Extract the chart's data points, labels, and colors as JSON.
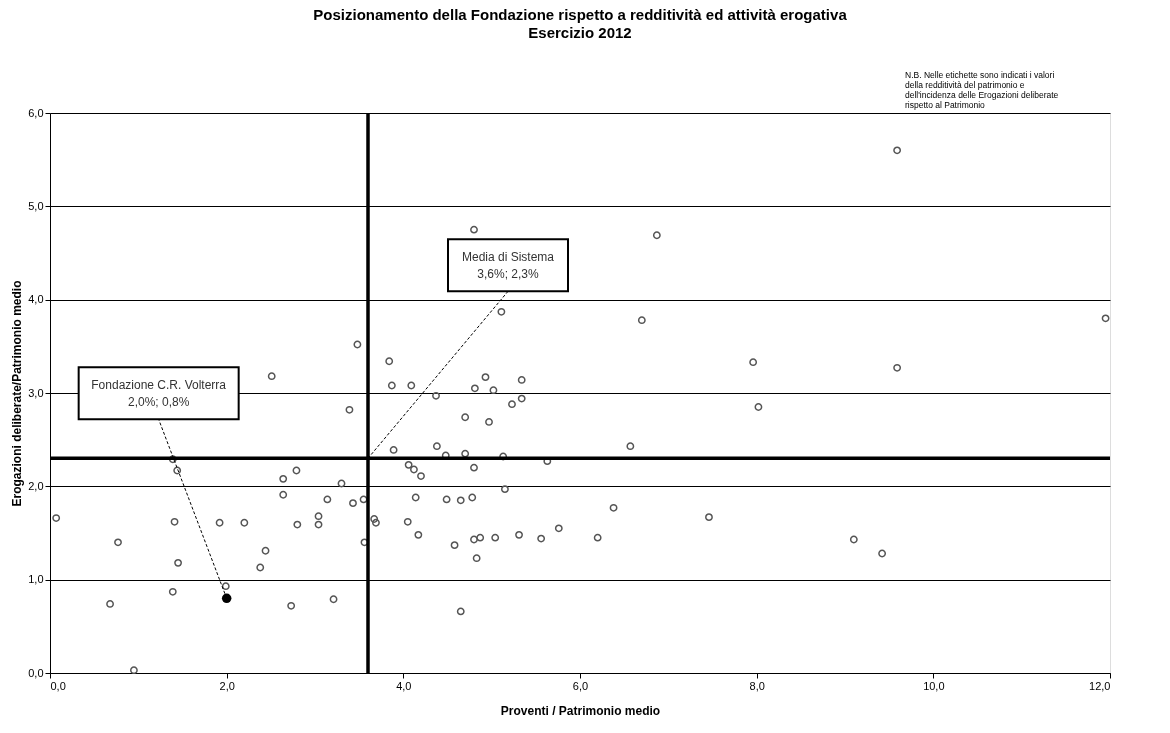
{
  "chart_data": {
    "type": "scatter",
    "title": "Posizionamento della Fondazione rispetto a redditività ed attività erogativa",
    "subtitle": "Esercizio 2012",
    "xlabel": "Proventi / Patrimonio medio",
    "ylabel": "Erogazioni deliberate/Patrimonio medio",
    "series": [
      {
        "color": "#555555",
        "marker": "circle",
        "x": [
          0.07,
          0.77,
          0.68,
          0.95,
          1.39,
          1.44,
          1.41,
          1.45,
          1.39,
          1.99,
          1.92,
          2.2,
          2.38,
          2.44,
          2.51,
          2.64,
          2.64,
          2.79,
          2.8,
          2.73,
          3.04,
          3.04,
          3.14,
          3.21,
          3.3,
          3.43,
          3.39,
          3.48,
          3.55,
          3.56,
          3.67,
          3.69,
          4.8,
          5.11,
          3.84,
          3.87,
          4.09,
          4.37,
          4.93,
          4.81,
          5.02,
          5.34,
          5.23,
          5.34,
          4.7,
          4.97,
          3.89,
          4.38,
          4.48,
          4.7,
          5.13,
          5.63,
          6.57,
          4.06,
          4.12,
          4.2,
          4.8,
          5.15,
          4.14,
          4.49,
          4.65,
          4.78,
          6.38,
          4.05,
          4.17,
          4.58,
          4.8,
          4.87,
          5.04,
          5.31,
          5.56,
          5.76,
          6.2,
          4.83,
          4.65,
          6.87,
          6.7,
          7.96,
          9.59,
          11.95,
          8.02,
          7.46,
          9.1,
          9.42,
          9.59
        ],
        "values": [
          1.66,
          1.4,
          0.74,
          0.03,
          2.29,
          2.17,
          1.62,
          1.18,
          0.87,
          0.93,
          1.61,
          1.61,
          1.13,
          1.31,
          3.18,
          2.08,
          1.91,
          2.17,
          1.59,
          0.72,
          1.68,
          1.59,
          1.86,
          0.79,
          2.03,
          1.82,
          2.82,
          3.52,
          1.86,
          1.4,
          1.65,
          1.61,
          4.75,
          3.87,
          3.34,
          3.08,
          3.08,
          2.97,
          3.17,
          3.05,
          3.03,
          3.14,
          2.88,
          2.94,
          2.74,
          2.69,
          2.39,
          2.43,
          2.33,
          2.35,
          2.32,
          2.27,
          2.43,
          2.23,
          2.18,
          2.11,
          2.2,
          1.97,
          1.88,
          1.86,
          1.85,
          1.88,
          1.77,
          1.62,
          1.48,
          1.37,
          1.43,
          1.45,
          1.45,
          1.48,
          1.44,
          1.55,
          1.45,
          1.23,
          0.66,
          4.69,
          3.78,
          3.33,
          3.27,
          3.8,
          2.85,
          1.67,
          1.43,
          1.28,
          5.6
        ]
      },
      {
        "color": "#000000",
        "marker": "circle",
        "x": [
          2.0
        ],
        "values": [
          0.8
        ]
      }
    ],
    "xlim": [
      0,
      12
    ],
    "xticks": [
      {
        "value": 0,
        "label": "0,0"
      },
      {
        "value": 2,
        "label": "2,0"
      },
      {
        "value": 4,
        "label": "4,0"
      },
      {
        "value": 6,
        "label": "6,0"
      },
      {
        "value": 8,
        "label": "8,0"
      },
      {
        "value": 10,
        "label": "10,0"
      },
      {
        "value": 12,
        "label": "12,0"
      }
    ],
    "ylim": [
      0,
      6
    ],
    "yticks": [
      {
        "value": 0,
        "label": "0,0"
      },
      {
        "value": 1,
        "label": "1,0"
      },
      {
        "value": 2,
        "label": "2,0"
      },
      {
        "value": 3,
        "label": "3,0"
      },
      {
        "value": 4,
        "label": "4,0"
      },
      {
        "value": 5,
        "label": "5,0"
      },
      {
        "value": 6,
        "label": "6,0"
      }
    ],
    "grid": "y",
    "legend": false,
    "ref_lines": [
      {
        "axis": "x",
        "value": 3.6,
        "color": "#000000"
      },
      {
        "axis": "y",
        "value": 2.3,
        "color": "#000000"
      }
    ],
    "annotations": [
      {
        "text": "Fondazione C.R. Volterra\n2,0%; 0,8%",
        "x": 2.0,
        "y": 0.8
      },
      {
        "text": "Media di Sistema\n3,6%; 2,3%",
        "x": 3.6,
        "y": 2.3
      },
      "N.B. Nelle etichette sono indicati i valori della redditività del patrimonio e dell'incidenza delle Erogazioni deliberate rispetto al Patrimonio"
    ]
  }
}
